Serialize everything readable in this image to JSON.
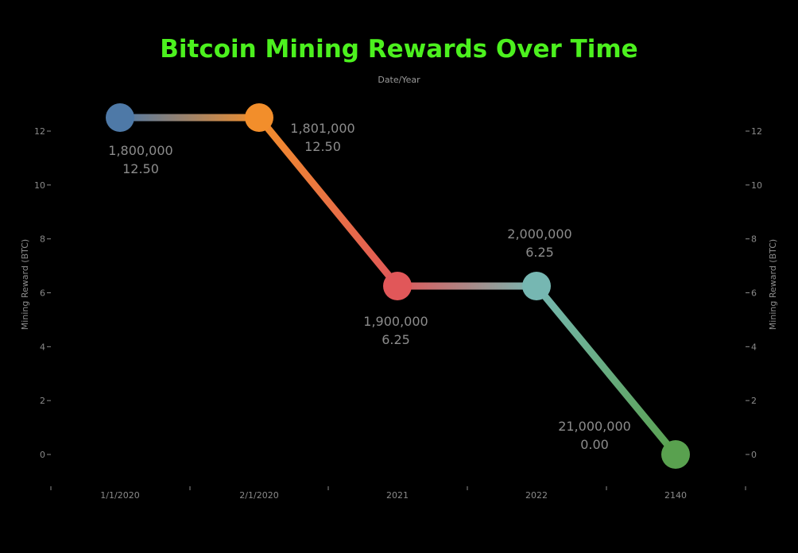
{
  "chart_data": {
    "type": "line",
    "title": "Bitcoin Mining Rewards Over Time",
    "subtitle": "Date/Year",
    "xlabel": "",
    "ylabel_left": "Mining Reward (BTC)",
    "ylabel_right": "Mining Reward (BTC)",
    "categories": [
      "1/1/2020",
      "2/1/2020",
      "2021",
      "2022",
      "2140"
    ],
    "series": [
      {
        "values": [
          12.5,
          12.5,
          6.25,
          6.25,
          0
        ],
        "point_colors": [
          "#4e79a7",
          "#f28e2b",
          "#e15759",
          "#76b7b2",
          "#59a14f"
        ],
        "labels": [
          [
            "1,800,000",
            "12.50"
          ],
          [
            "1,801,000",
            "12.50"
          ],
          [
            "1,900,000",
            "6.25"
          ],
          [
            "2,000,000",
            "6.25"
          ],
          [
            "21,000,000",
            "0.00"
          ]
        ]
      }
    ],
    "yticks": [
      0,
      2,
      4,
      6,
      8,
      10,
      12
    ],
    "ylim": [
      -1.1,
      14
    ],
    "grid": false,
    "title_color": "#4cf11e",
    "background": "#000000"
  }
}
